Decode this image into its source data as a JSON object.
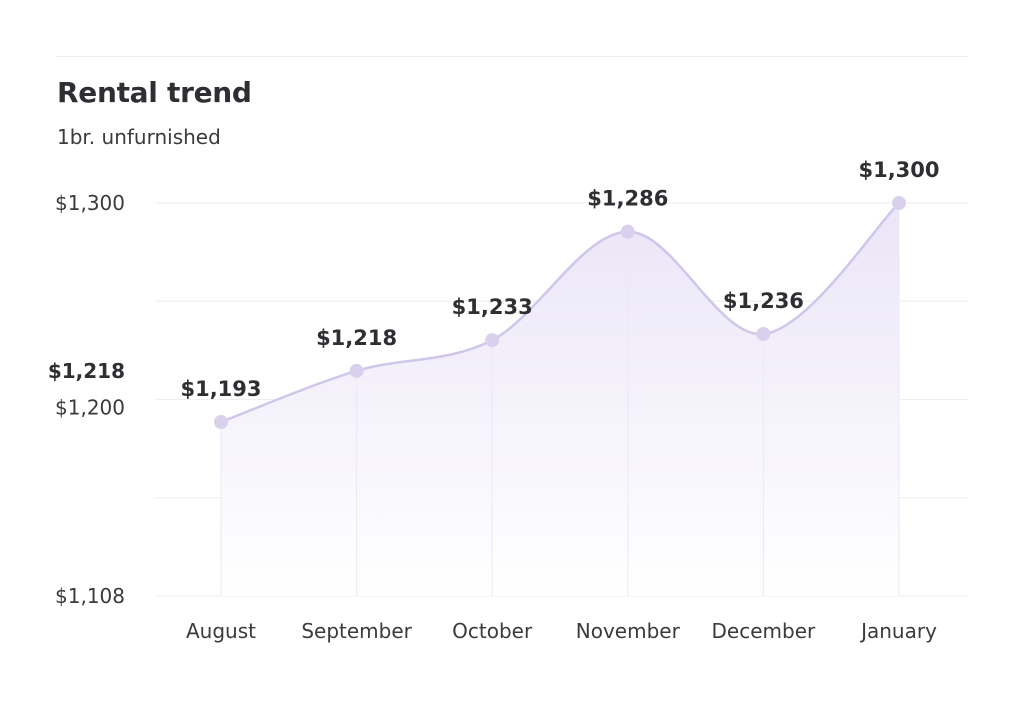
{
  "header": {
    "title": "Rental trend",
    "subtitle": "1br. unfurnished"
  },
  "colors": {
    "line": "#cfc6ea",
    "point": "#d8d0ec",
    "fill_top": "#e9e4f7",
    "grid": "#eeeeee"
  },
  "chart_data": {
    "type": "area",
    "title": "Rental trend",
    "subtitle": "1br. unfurnished",
    "categories": [
      "August",
      "September",
      "October",
      "November",
      "December",
      "January"
    ],
    "values": [
      1193,
      1218,
      1233,
      1286,
      1236,
      1300
    ],
    "data_labels": [
      "$1,193",
      "$1,218",
      "$1,233",
      "$1,286",
      "$1,236",
      "$1,300"
    ],
    "ylim": [
      1108,
      1300
    ],
    "y_ticks": [
      {
        "value": 1300,
        "label": "$1,300",
        "bold": false
      },
      {
        "value": 1218,
        "label": "$1,218",
        "bold": true
      },
      {
        "value": 1200,
        "label": "$1,200",
        "bold": false
      },
      {
        "value": 1108,
        "label": "$1,108",
        "bold": false
      }
    ],
    "grid": true,
    "curve": "smooth"
  }
}
